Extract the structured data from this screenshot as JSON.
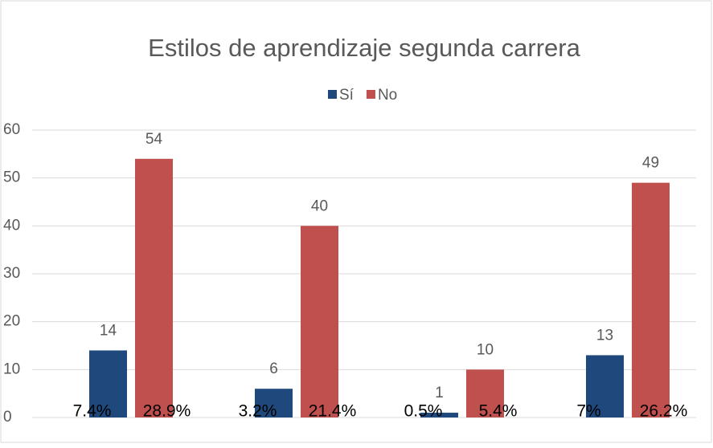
{
  "chart_data": {
    "type": "bar",
    "title": "Estilos de aprendizaje segunda carrera",
    "categories": [
      null,
      null,
      null,
      null
    ],
    "series": [
      {
        "name": "Sí",
        "color": "#1f497d",
        "values": [
          14,
          6,
          1,
          13
        ],
        "percent_labels": [
          "7.4%",
          "3.2%",
          "0.5%",
          "7%"
        ]
      },
      {
        "name": "No",
        "color": "#c0504d",
        "values": [
          54,
          40,
          10,
          49
        ],
        "percent_labels": [
          "28.9%",
          "21.4%",
          "5.4%",
          "26.2%"
        ]
      }
    ],
    "ylim": [
      0,
      60
    ],
    "yticks": [
      0,
      10,
      20,
      30,
      40,
      50,
      60
    ],
    "grid": true,
    "legend": "top"
  }
}
